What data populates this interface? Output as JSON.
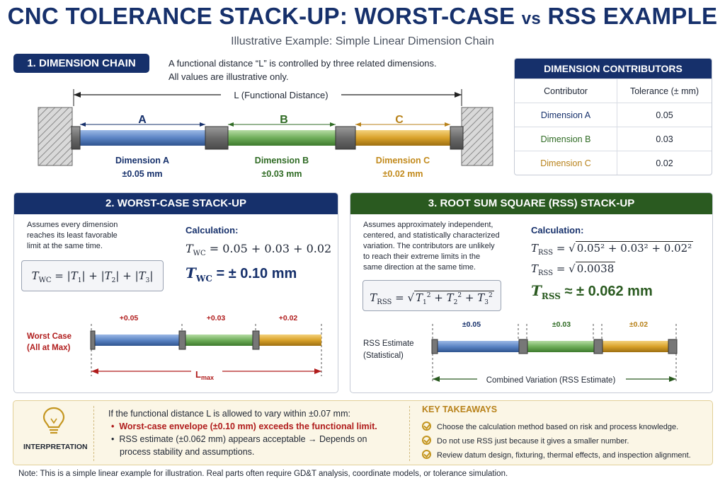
{
  "header": {
    "title_main": "CNC TOLERANCE STACK-UP: WORST-CASE",
    "title_vs": "vs",
    "title_end": "RSS EXAMPLE",
    "subtitle": "Illustrative Example: Simple Linear Dimension Chain"
  },
  "section1": {
    "tag": "1. DIMENSION CHAIN",
    "intro_line1": "A functional distance “L” is controlled by three related dimensions.",
    "intro_line2": "All values are illustrative only.",
    "functional_label": "L (Functional Distance)",
    "dims": [
      {
        "letter": "A",
        "name": "Dimension A",
        "tol": "±0.05 mm",
        "color": "#5b84c4"
      },
      {
        "letter": "B",
        "name": "Dimension B",
        "tol": "±0.03 mm",
        "color": "#6fae5a"
      },
      {
        "letter": "C",
        "name": "Dimension C",
        "tol": "±0.02 mm",
        "color": "#d9a22a"
      }
    ]
  },
  "contributors": {
    "title": "DIMENSION CONTRIBUTORS",
    "col1": "Contributor",
    "col2": "Tolerance (± mm)",
    "rows": [
      {
        "name": "Dimension A",
        "tol": "0.05",
        "color": "#16306b"
      },
      {
        "name": "Dimension B",
        "tol": "0.03",
        "color": "#2f6b24"
      },
      {
        "name": "Dimension C",
        "tol": "0.02",
        "color": "#b8821a"
      }
    ]
  },
  "worst_case": {
    "title": "2. WORST-CASE STACK-UP",
    "desc_line1": "Assumes every dimension",
    "desc_line2": "reaches its least favorable",
    "desc_line3": "limit at the same time.",
    "formula_lhs": "T",
    "formula_sub": "WC",
    "formula_rhs": "= |T1| + |T2| + |T3|",
    "calc_label": "Calculation:",
    "calc_line": "= 0.05 + 0.03 + 0.02",
    "result": "= ± 0.10 mm",
    "bar_label_1": "Worst Case",
    "bar_label_2": "(All at Max)",
    "segment_labels": [
      "+0.05",
      "+0.03",
      "+0.02"
    ],
    "lmax": "L",
    "lmax_sub": "max"
  },
  "rss": {
    "title": "3. ROOT SUM SQUARE (RSS) STACK-UP",
    "desc": [
      "Assumes approximately independent,",
      "centered, and statistically characterized",
      "variation. The contributors are unlikely",
      "to reach their extreme limits in the",
      "same direction at the same time."
    ],
    "formula_sub": "RSS",
    "calc_label": "Calculation:",
    "calc_line1": "0.05² + 0.03² + 0.02²",
    "calc_line2": "0.0038",
    "result": "≈ ± 0.062 mm",
    "bar_label_1": "RSS Estimate",
    "bar_label_2": "(Statistical)",
    "segment_labels": [
      "±0.05",
      "±0.03",
      "±0.02"
    ],
    "combined": "Combined Variation (RSS Estimate)"
  },
  "interpretation": {
    "icon_label": "INTERPRETATION",
    "lead": "If the functional distance L is allowed to vary within ±0.07 mm:",
    "bullet1": "Worst-case envelope (±0.10 mm) exceeds the functional limit.",
    "bullet2_line1": "RSS estimate (±0.062 mm) appears acceptable → Depends on",
    "bullet2_line2": "process stability and assumptions.",
    "takeaways_title": "KEY TAKEAWAYS",
    "takeaways": [
      "Choose the calculation method based on risk and process knowledge.",
      "Do not use RSS just because it gives a smaller number.",
      "Review datum design, fixturing, thermal effects, and inspection alignment."
    ]
  },
  "note": "Note: This is a simple linear example for illustration. Real parts often require GD&T analysis, coordinate models, or tolerance simulation."
}
